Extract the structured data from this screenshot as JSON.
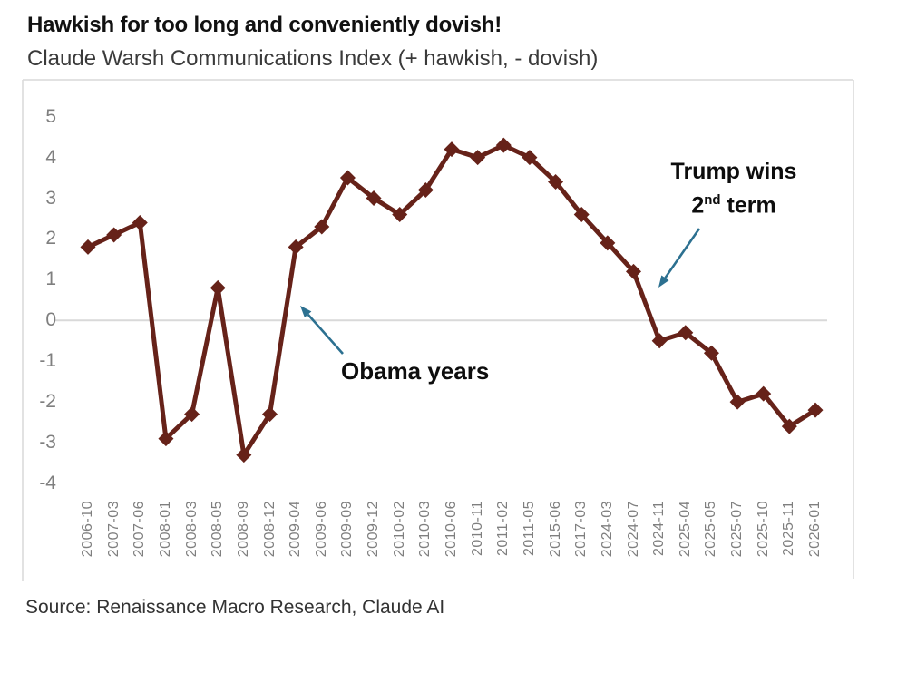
{
  "title": "Hawkish for too long and conveniently dovish!",
  "subtitle": "Claude Warsh Communications Index (+ hawkish, - dovish)",
  "source": "Source: Renaissance Macro Research, Claude AI",
  "annotations": {
    "obama": {
      "text": "Obama years"
    },
    "trump": {
      "line1": "Trump wins",
      "line2_num": "2",
      "line2_sup": "nd",
      "line2_rest": " term"
    }
  },
  "colors": {
    "line": "#662219",
    "arrow": "#2c7090",
    "grid": "#d9d9d9",
    "tick_text": "#7f7f7f"
  },
  "chart_data": {
    "type": "line",
    "title": "Hawkish for too long and conveniently dovish!",
    "subtitle": "Claude Warsh Communications Index (+ hawkish, - dovish)",
    "categories": [
      "2006-10",
      "2007-03",
      "2007-06",
      "2008-01",
      "2008-03",
      "2008-05",
      "2008-09",
      "2008-12",
      "2009-04",
      "2009-06",
      "2009-09",
      "2009-12",
      "2010-02",
      "2010-03",
      "2010-06",
      "2010-11",
      "2011-02",
      "2011-05",
      "2015-06",
      "2017-03",
      "2024-03",
      "2024-07",
      "2024-11",
      "2025-04",
      "2025-05",
      "2025-07",
      "2025-10",
      "2025-11",
      "2026-01"
    ],
    "values": [
      1.8,
      2.1,
      2.4,
      -2.9,
      -2.3,
      0.8,
      -3.3,
      -2.3,
      1.8,
      2.3,
      3.5,
      3.0,
      2.6,
      3.2,
      4.2,
      4.0,
      4.3,
      4.0,
      3.4,
      2.6,
      1.9,
      1.2,
      -0.5,
      -0.3,
      -0.8,
      -2.0,
      -1.8,
      -2.6,
      -2.2
    ],
    "ylim": [
      -4,
      5
    ],
    "yticks": [
      5,
      4,
      3,
      2,
      1,
      0,
      -1,
      -2,
      -3,
      -4
    ],
    "xlabel": "",
    "ylabel": "",
    "legend": "none",
    "grid": "zero-line-only",
    "marker": "diamond",
    "annotations": [
      {
        "text": "Obama years",
        "points_to": "2009-04"
      },
      {
        "text": "Trump wins 2nd term",
        "points_to": "2024-11"
      }
    ],
    "source": "Source: Renaissance Macro Research, Claude AI"
  }
}
